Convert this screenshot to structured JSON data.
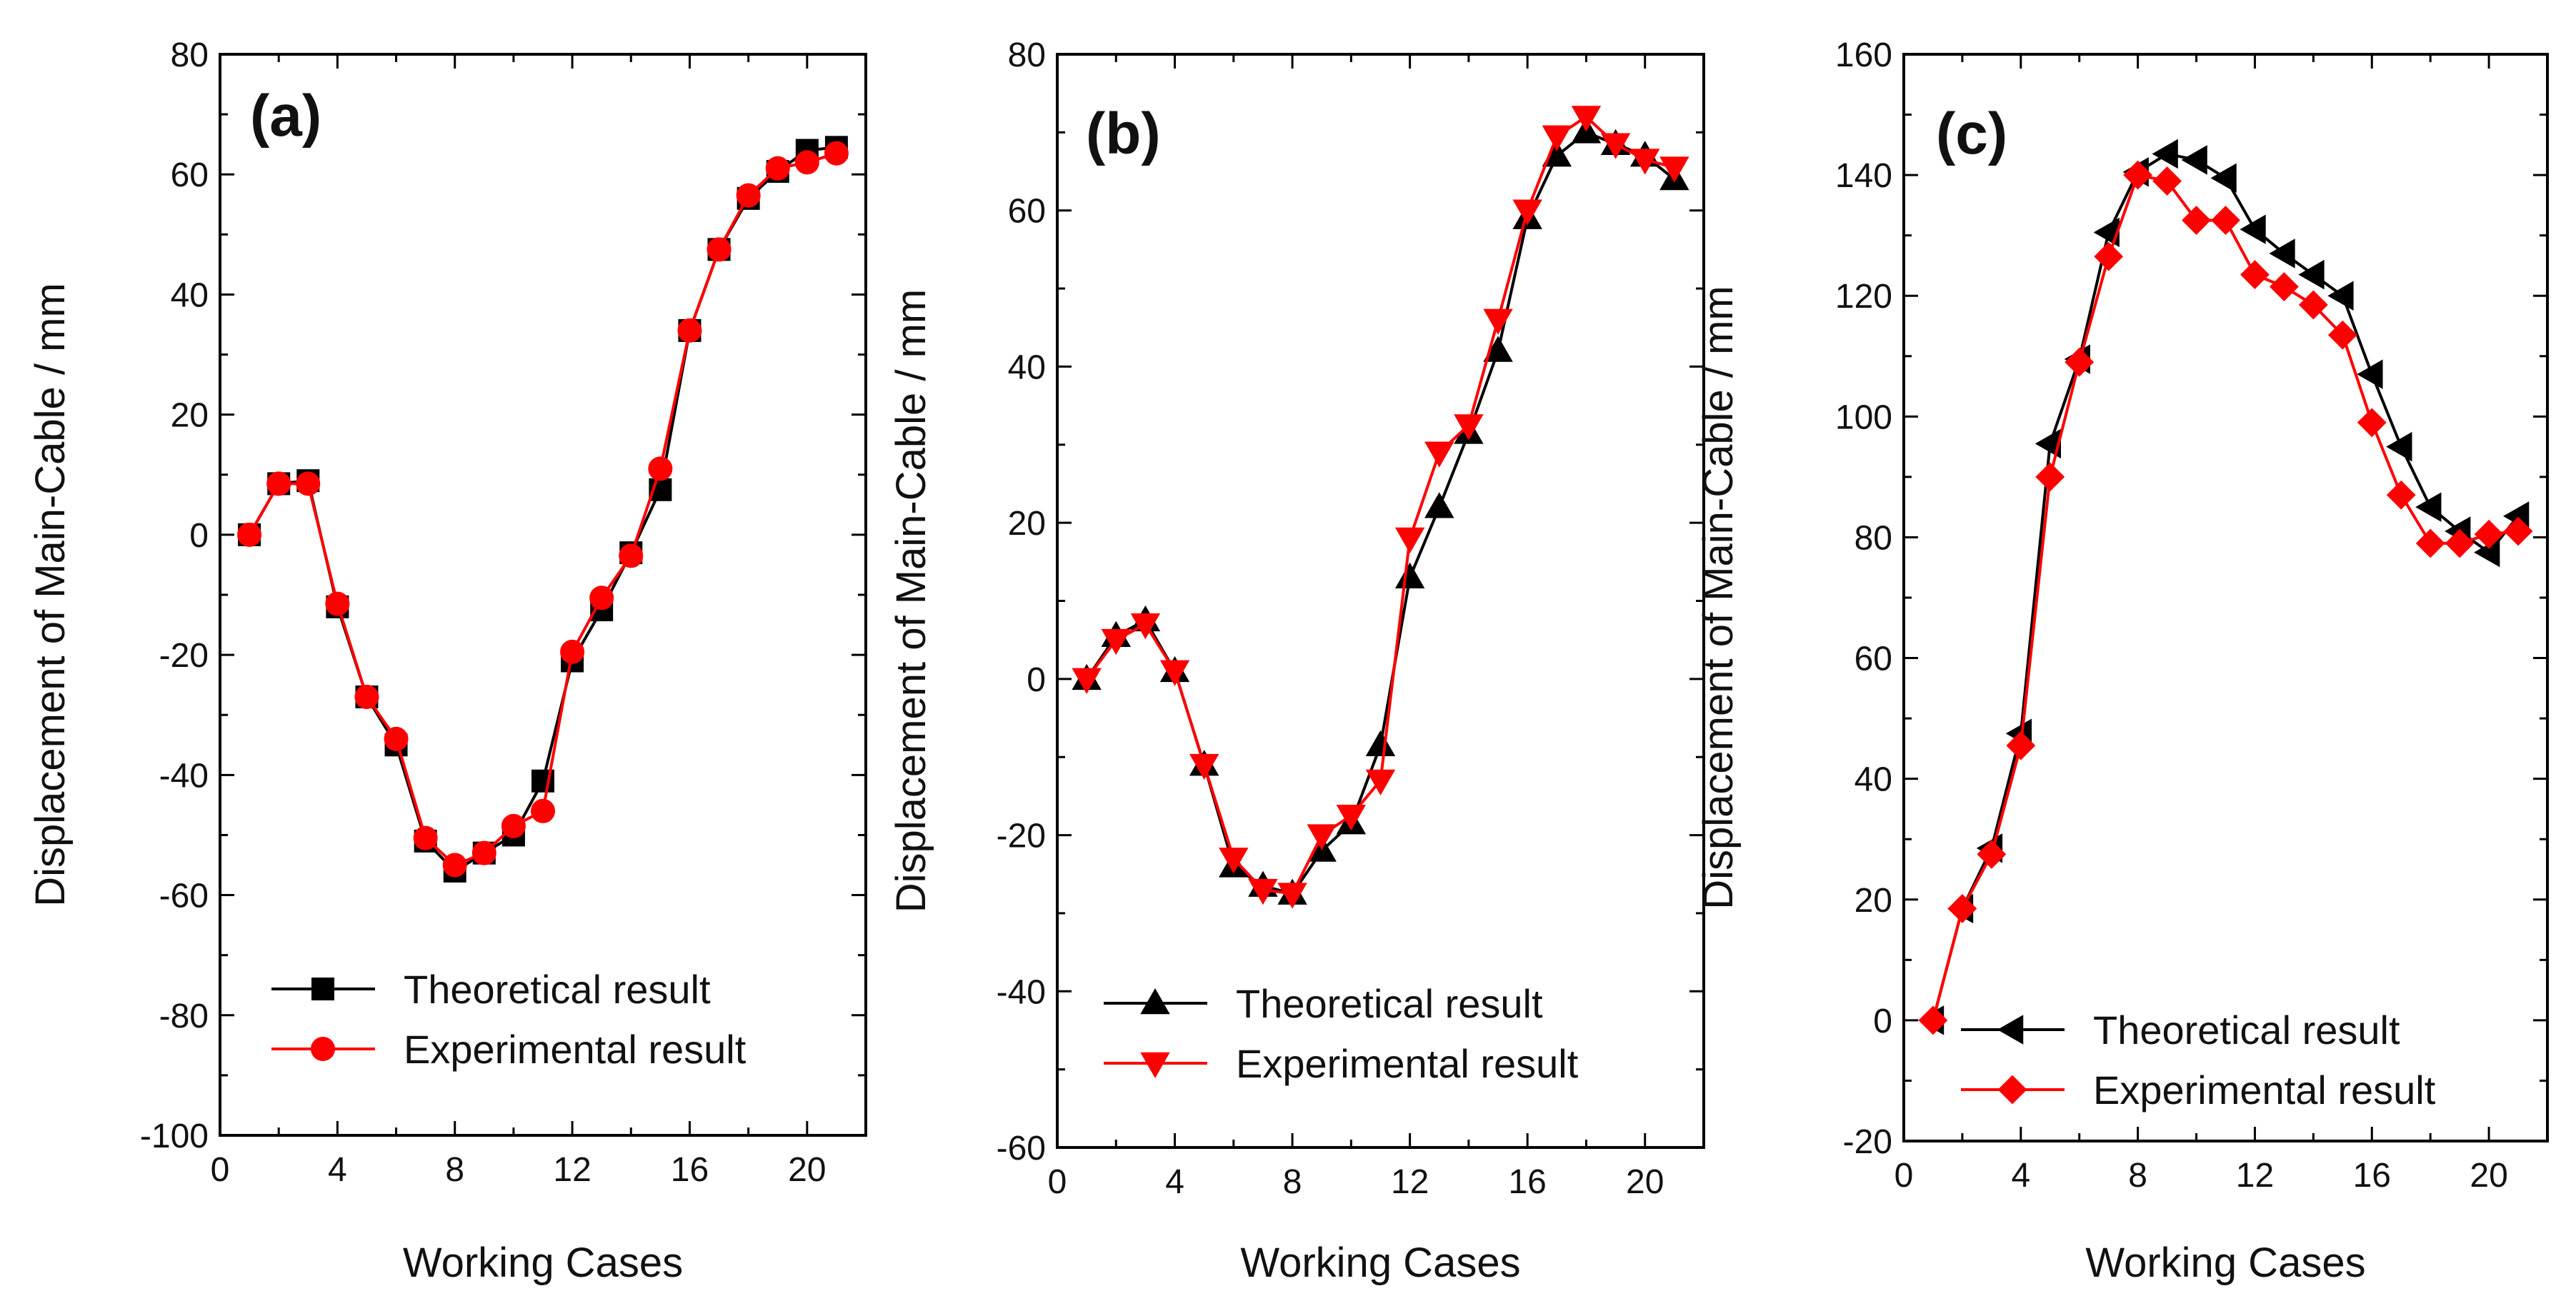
{
  "chart_data": [
    {
      "type": "line",
      "panel_label": "(a)",
      "xlabel": "Working Cases",
      "ylabel": "Displacement of Main-Cable / mm",
      "xlim": [
        0,
        22
      ],
      "ylim": [
        -100,
        80
      ],
      "xticks": [
        0,
        4,
        8,
        12,
        16,
        20
      ],
      "yticks": [
        -100,
        -80,
        -60,
        -40,
        -20,
        0,
        20,
        40,
        60,
        80
      ],
      "grid": false,
      "legend_position": "bottom-center",
      "x": [
        1,
        2,
        3,
        4,
        5,
        6,
        7,
        8,
        9,
        10,
        11,
        12,
        13,
        14,
        15,
        16,
        17,
        18,
        19,
        20,
        21
      ],
      "series": [
        {
          "name": "Theoretical result",
          "color": "#000000",
          "marker": "square",
          "values": [
            0,
            8.5,
            9,
            -12,
            -27,
            -35,
            -51,
            -56,
            -53,
            -50,
            -41,
            -21,
            -12.5,
            -3,
            7.5,
            34,
            47.5,
            56,
            60.5,
            64,
            64.5
          ]
        },
        {
          "name": "Experimental result",
          "color": "#ff0000",
          "marker": "circle",
          "values": [
            0,
            8.5,
            8.5,
            -11.5,
            -27,
            -34,
            -50.5,
            -55,
            -53,
            -48.5,
            -46,
            -19.5,
            -10.5,
            -3.5,
            11,
            34,
            47.5,
            56.5,
            61,
            62,
            63.5
          ]
        }
      ]
    },
    {
      "type": "line",
      "panel_label": "(b)",
      "xlabel": "Working Cases",
      "ylabel": "Displacement of Main-Cable / mm",
      "xlim": [
        0,
        22
      ],
      "ylim": [
        -60,
        80
      ],
      "xticks": [
        0,
        4,
        8,
        12,
        16,
        20
      ],
      "yticks": [
        -60,
        -40,
        -20,
        0,
        20,
        40,
        60,
        80
      ],
      "grid": false,
      "legend_position": "bottom-center",
      "x": [
        1,
        2,
        3,
        4,
        5,
        6,
        7,
        8,
        9,
        10,
        11,
        12,
        13,
        14,
        15,
        16,
        17,
        18,
        19,
        20,
        21
      ],
      "series": [
        {
          "name": "Theoretical result",
          "color": "#000000",
          "marker": "triangle-up",
          "values": [
            0,
            5.5,
            7.5,
            1,
            -11,
            -24,
            -26.5,
            -27.5,
            -22,
            -18.5,
            -8.5,
            13,
            22,
            31.5,
            42,
            59,
            67,
            70,
            68.5,
            67,
            64
          ]
        },
        {
          "name": "Experimental result",
          "color": "#ff0000",
          "marker": "triangle-down",
          "values": [
            0,
            5,
            7,
            1,
            -11,
            -23,
            -27,
            -27.5,
            -20,
            -17.5,
            -13,
            18,
            29,
            32.5,
            46,
            60,
            69.5,
            72,
            68.5,
            66.5,
            65.5
          ]
        }
      ]
    },
    {
      "type": "line",
      "panel_label": "(c)",
      "xlabel": "Working Cases",
      "ylabel": "Displacement of Main-Cable / mm",
      "xlim": [
        0,
        22
      ],
      "ylim": [
        -20,
        160
      ],
      "xticks": [
        0,
        4,
        8,
        12,
        16,
        20
      ],
      "yticks": [
        -20,
        0,
        20,
        40,
        60,
        80,
        100,
        120,
        140,
        160
      ],
      "grid": false,
      "legend_position": "bottom-center",
      "x": [
        1,
        2,
        3,
        4,
        5,
        6,
        7,
        8,
        9,
        10,
        11,
        12,
        13,
        14,
        15,
        16,
        17,
        18,
        19,
        20,
        21
      ],
      "series": [
        {
          "name": "Theoretical result",
          "color": "#000000",
          "marker": "triangle-left",
          "values": [
            0,
            18.5,
            28.5,
            47.5,
            95.5,
            109.5,
            130.5,
            140.5,
            143.5,
            142.5,
            139.5,
            131,
            127,
            123.5,
            120,
            107,
            95,
            85,
            81,
            77.5,
            83.5
          ]
        },
        {
          "name": "Experimental result",
          "color": "#ff0000",
          "marker": "diamond",
          "values": [
            0,
            18.5,
            27.5,
            45.5,
            90,
            109,
            126.5,
            140,
            139,
            132.5,
            132.5,
            123.5,
            121.5,
            118.5,
            113.5,
            99,
            87,
            79,
            79,
            80.5,
            81
          ]
        }
      ]
    }
  ]
}
